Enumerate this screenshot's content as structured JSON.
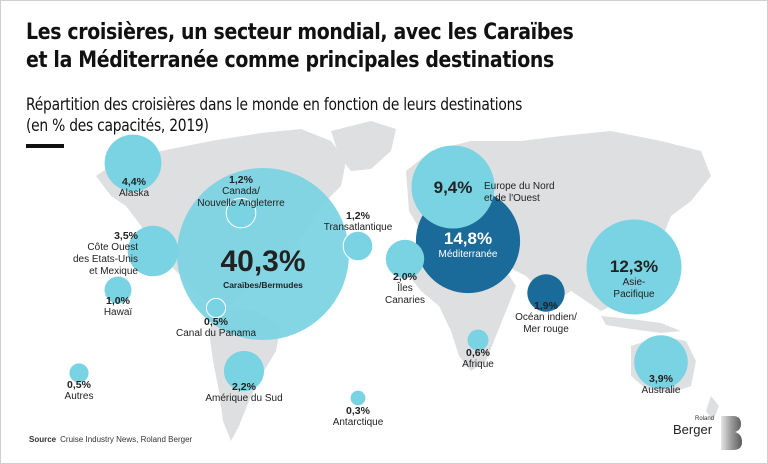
{
  "header": {
    "title_line1": "Les croisières, un secteur mondial, avec les Caraïbes",
    "title_line2": "et la Méditerranée comme principales destinations",
    "subtitle_line1": "Répartition des croisières dans le monde en fonction de leurs destinations",
    "subtitle_line2": "(en % des capacités, 2019)"
  },
  "colors": {
    "bubble_light": "#7ad3e3",
    "bubble_dark": "#1a6b99",
    "land": "#dedfe1",
    "text": "#111111"
  },
  "chart_data": {
    "type": "bubble-map",
    "title": "Les croisières, un secteur mondial, avec les Caraïbes et la Méditerranée comme principales destinations",
    "subtitle": "Répartition des croisières dans le monde en fonction de leurs destinations (en % des capacités, 2019)",
    "unit": "% des capacités",
    "year": 2019,
    "points": [
      {
        "id": "caraibes",
        "name": "Caraïbes/Bermudes",
        "value": 40.3,
        "label": "40,3%",
        "color": "light"
      },
      {
        "id": "mediterranee",
        "name": "Méditerranée",
        "value": 14.8,
        "label": "14,8%",
        "color": "dark"
      },
      {
        "id": "asie",
        "name": "Asie-Pacifique",
        "name_lines": [
          "Asie-",
          "Pacifique"
        ],
        "value": 12.3,
        "label": "12,3%",
        "color": "light"
      },
      {
        "id": "europe",
        "name": "Europe du Nord et de l'Ouest",
        "name_lines": [
          "Europe du Nord",
          "et de l'Ouest"
        ],
        "value": 9.4,
        "label": "9,4%",
        "color": "light"
      },
      {
        "id": "alaska",
        "name": "Alaska",
        "value": 4.4,
        "label": "4,4%",
        "color": "light"
      },
      {
        "id": "australie",
        "name": "Australie",
        "value": 3.9,
        "label": "3,9%",
        "color": "light"
      },
      {
        "id": "cote-ouest",
        "name": "Côte Ouest des Etats-Unis et Mexique",
        "name_lines": [
          "Côte Ouest",
          "des Etats-Unis",
          "et Mexique"
        ],
        "value": 3.5,
        "label": "3,5%",
        "color": "light"
      },
      {
        "id": "amerique-sud",
        "name": "Amérique du Sud",
        "value": 2.2,
        "label": "2,2%",
        "color": "light"
      },
      {
        "id": "canaries",
        "name": "Îles Canaries",
        "name_lines": [
          "Îles",
          "Canaries"
        ],
        "value": 2.0,
        "label": "2,0%",
        "color": "light"
      },
      {
        "id": "ocean-indien",
        "name": "Océan indien/Mer rouge",
        "name_lines": [
          "Océan indien/",
          "Mer rouge"
        ],
        "value": 1.9,
        "label": "1,9%",
        "color": "dark"
      },
      {
        "id": "canada",
        "name": "Canada/Nouvelle Angleterre",
        "name_lines": [
          "Canada/",
          "Nouvelle Angleterre"
        ],
        "value": 1.2,
        "label": "1,2%",
        "color": "light"
      },
      {
        "id": "transatlantique",
        "name": "Transatlantique",
        "value": 1.2,
        "label": "1,2%",
        "color": "light"
      },
      {
        "id": "hawai",
        "name": "Hawaï",
        "value": 1.0,
        "label": "1,0%",
        "color": "light"
      },
      {
        "id": "afrique",
        "name": "Afrique",
        "value": 0.6,
        "label": "0,6%",
        "color": "light"
      },
      {
        "id": "panama",
        "name": "Canal du Panama",
        "value": 0.5,
        "label": "0,5%",
        "color": "light"
      },
      {
        "id": "autres",
        "name": "Autres",
        "value": 0.5,
        "label": "0,5%",
        "color": "light"
      },
      {
        "id": "antarctique",
        "name": "Antarctique",
        "value": 0.3,
        "label": "0,3%",
        "color": "light"
      }
    ]
  },
  "footer": {
    "source_label": "Source",
    "source_text": "Cruise Industry News, Roland Berger",
    "logo_top": "Roland",
    "logo_main": "Berger"
  }
}
